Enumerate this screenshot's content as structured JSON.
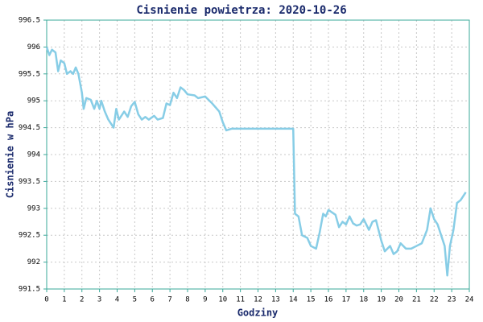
{
  "chart_data": {
    "type": "line",
    "title": "Cisnienie powietrza: 2020-10-26",
    "y_label": "Cisnienie w hPa",
    "x_label": "Godziny",
    "xlim": [
      0,
      24
    ],
    "xticks": [
      0,
      1,
      2,
      3,
      4,
      5,
      6,
      7,
      8,
      9,
      10,
      11,
      12,
      13,
      14,
      15,
      16,
      17,
      18,
      19,
      20,
      21,
      22,
      23,
      24
    ],
    "ylim": [
      991.5,
      996.5
    ],
    "yticks": [
      991.5,
      992,
      992.5,
      993,
      993.5,
      994,
      994.5,
      995,
      995.5,
      996,
      996.5
    ],
    "grid": true,
    "series": [
      {
        "color": "#87cde6",
        "x": [
          0.0,
          0.15,
          0.3,
          0.5,
          0.65,
          0.8,
          1.0,
          1.15,
          1.35,
          1.5,
          1.65,
          1.8,
          2.0,
          2.1,
          2.25,
          2.5,
          2.7,
          2.85,
          3.0,
          3.1,
          3.3,
          3.5,
          3.8,
          3.95,
          4.1,
          4.4,
          4.6,
          4.8,
          5.0,
          5.2,
          5.4,
          5.6,
          5.8,
          6.1,
          6.3,
          6.6,
          6.8,
          7.0,
          7.2,
          7.4,
          7.6,
          7.8,
          8.0,
          8.4,
          8.6,
          9.0,
          9.4,
          9.8,
          10.0,
          10.2,
          10.5,
          11,
          13,
          14.0,
          14.1,
          14.3,
          14.5,
          14.8,
          15.0,
          15.3,
          15.5,
          15.7,
          15.85,
          16.0,
          16.4,
          16.6,
          16.8,
          17.0,
          17.2,
          17.4,
          17.6,
          17.8,
          18.0,
          18.3,
          18.5,
          18.7,
          19.0,
          19.2,
          19.5,
          19.7,
          19.9,
          20.1,
          20.4,
          20.7,
          21.0,
          21.3,
          21.6,
          21.8,
          22.0,
          22.2,
          22.4,
          22.6,
          22.75,
          22.9,
          23.1,
          23.3,
          23.5,
          23.8
        ],
        "values": [
          996.0,
          995.85,
          995.95,
          995.9,
          995.55,
          995.75,
          995.7,
          995.5,
          995.55,
          995.5,
          995.62,
          995.5,
          995.15,
          994.85,
          995.05,
          995.02,
          994.85,
          995.0,
          994.85,
          995.0,
          994.8,
          994.65,
          994.5,
          994.85,
          994.65,
          994.8,
          994.7,
          994.9,
          994.98,
          994.75,
          994.65,
          994.7,
          994.65,
          994.72,
          994.65,
          994.68,
          994.95,
          994.92,
          995.15,
          995.05,
          995.25,
          995.2,
          995.12,
          995.1,
          995.05,
          995.08,
          994.95,
          994.8,
          994.6,
          994.45,
          994.48,
          994.48,
          994.48,
          994.48,
          992.9,
          992.85,
          992.5,
          992.45,
          992.3,
          992.25,
          992.55,
          992.9,
          992.85,
          992.97,
          992.88,
          992.65,
          992.75,
          992.7,
          992.85,
          992.72,
          992.68,
          992.7,
          992.8,
          992.6,
          992.75,
          992.78,
          992.4,
          992.2,
          992.3,
          992.15,
          992.2,
          992.35,
          992.25,
          992.25,
          992.3,
          992.35,
          992.6,
          993.0,
          992.8,
          992.7,
          992.5,
          992.3,
          991.75,
          992.3,
          992.6,
          993.1,
          993.15,
          993.3
        ]
      }
    ]
  }
}
